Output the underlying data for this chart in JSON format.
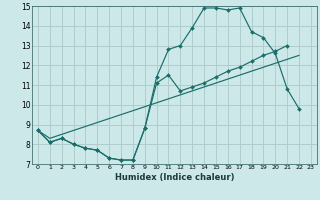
{
  "xlabel": "Humidex (Indice chaleur)",
  "xlim": [
    -0.5,
    23.5
  ],
  "ylim": [
    7,
    15
  ],
  "xticks": [
    0,
    1,
    2,
    3,
    4,
    5,
    6,
    7,
    8,
    9,
    10,
    11,
    12,
    13,
    14,
    15,
    16,
    17,
    18,
    19,
    20,
    21,
    22,
    23
  ],
  "yticks": [
    7,
    8,
    9,
    10,
    11,
    12,
    13,
    14,
    15
  ],
  "bg_color": "#cde8e8",
  "grid_color": "#b0cccc",
  "line_color": "#1a6e6a",
  "series1_x": [
    0,
    1,
    2,
    3,
    4,
    5,
    6,
    7,
    8,
    9,
    10,
    11,
    12,
    13,
    14,
    15,
    16,
    17,
    18,
    19,
    20,
    21,
    22
  ],
  "series1_y": [
    8.7,
    8.1,
    8.3,
    8.0,
    7.8,
    7.7,
    7.3,
    7.2,
    7.2,
    8.8,
    11.4,
    12.8,
    13.0,
    13.9,
    14.9,
    14.9,
    14.8,
    14.9,
    13.7,
    13.4,
    12.6,
    10.8,
    9.8
  ],
  "series2_x": [
    0,
    1,
    2,
    3,
    4,
    5,
    6,
    7,
    8,
    9,
    10,
    11,
    12,
    13,
    14,
    15,
    16,
    17,
    18,
    19,
    20,
    21
  ],
  "series2_y": [
    8.7,
    8.1,
    8.3,
    8.0,
    7.8,
    7.7,
    7.3,
    7.2,
    7.2,
    8.8,
    11.1,
    11.5,
    10.7,
    10.9,
    11.1,
    11.4,
    11.7,
    11.9,
    12.2,
    12.5,
    12.7,
    13.0
  ],
  "series3_x": [
    0,
    1,
    2,
    3,
    4,
    5,
    6,
    7,
    8,
    9,
    10,
    11,
    12,
    13,
    14,
    15,
    16,
    17,
    18,
    19,
    20,
    21,
    22
  ],
  "series3_y": [
    8.7,
    8.3,
    8.5,
    8.7,
    8.9,
    9.1,
    9.3,
    9.5,
    9.7,
    9.9,
    10.1,
    10.3,
    10.5,
    10.7,
    10.9,
    11.1,
    11.3,
    11.5,
    11.7,
    11.9,
    12.1,
    12.3,
    12.5
  ]
}
